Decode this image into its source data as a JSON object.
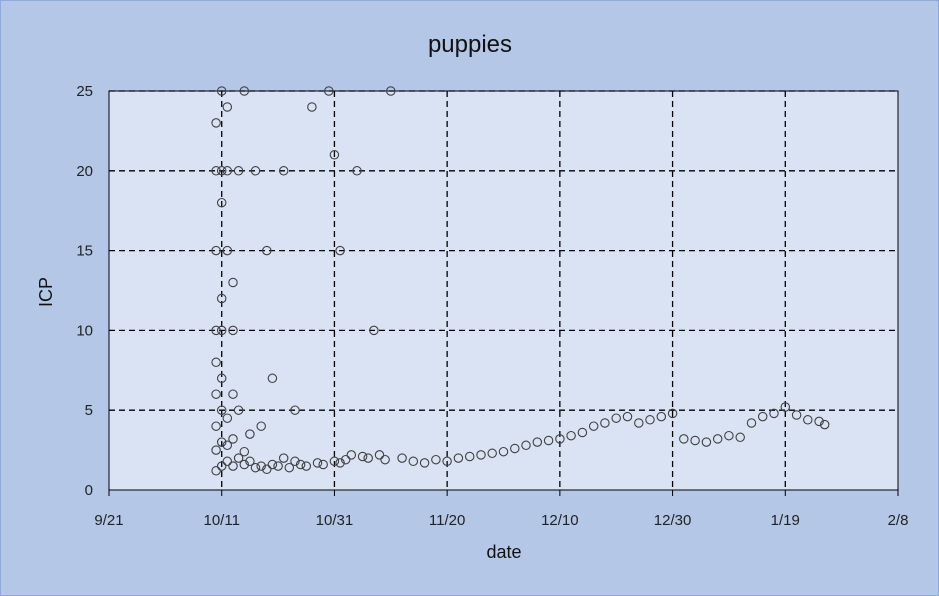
{
  "chart_data": {
    "type": "scatter",
    "title": "puppies",
    "xlabel": "date",
    "ylabel": "ICP",
    "x_axis_kind": "date",
    "xlim": [
      "2018-09-21",
      "2019-02-08"
    ],
    "ylim": [
      0,
      25
    ],
    "x_ticks": [
      {
        "date": "2018-09-21",
        "label": "9/21"
      },
      {
        "date": "2018-10-11",
        "label": "10/11"
      },
      {
        "date": "2018-10-31",
        "label": "10/31"
      },
      {
        "date": "2018-11-20",
        "label": "11/20"
      },
      {
        "date": "2018-12-10",
        "label": "12/10"
      },
      {
        "date": "2018-12-30",
        "label": "12/30"
      },
      {
        "date": "2019-01-19",
        "label": "1/19"
      },
      {
        "date": "2019-02-08",
        "label": "2/8"
      }
    ],
    "y_ticks": [
      0,
      5,
      10,
      15,
      20,
      25
    ],
    "grid": "dashed major gridlines",
    "legend": "none",
    "colors": {
      "figure_background": "#b4c7e7",
      "plot_background": "#dae3f3",
      "marker_edge": "#404040",
      "gridline": "#000000"
    },
    "series": [
      {
        "marker": "hollow-circle",
        "x": [
          "2018-10-10",
          "2018-10-10",
          "2018-10-10",
          "2018-10-10",
          "2018-10-10",
          "2018-10-10",
          "2018-10-10",
          "2018-10-10",
          "2018-10-10",
          "2018-10-11",
          "2018-10-11",
          "2018-10-11",
          "2018-10-11",
          "2018-10-11",
          "2018-10-11",
          "2018-10-11",
          "2018-10-11",
          "2018-10-11",
          "2018-10-12",
          "2018-10-12",
          "2018-10-12",
          "2018-10-12",
          "2018-10-12",
          "2018-10-12",
          "2018-10-13",
          "2018-10-13",
          "2018-10-13",
          "2018-10-13",
          "2018-10-13",
          "2018-10-14",
          "2018-10-14",
          "2018-10-14",
          "2018-10-15",
          "2018-10-15",
          "2018-10-15",
          "2018-10-16",
          "2018-10-16",
          "2018-10-17",
          "2018-10-17",
          "2018-10-18",
          "2018-10-18",
          "2018-10-19",
          "2018-10-19",
          "2018-10-20",
          "2018-10-20",
          "2018-10-21",
          "2018-10-22",
          "2018-10-22",
          "2018-10-23",
          "2018-10-24",
          "2018-10-24",
          "2018-10-25",
          "2018-10-26",
          "2018-10-27",
          "2018-10-28",
          "2018-10-29",
          "2018-10-30",
          "2018-10-31",
          "2018-10-31",
          "2018-11-01",
          "2018-11-01",
          "2018-11-02",
          "2018-11-03",
          "2018-11-04",
          "2018-11-05",
          "2018-11-06",
          "2018-11-07",
          "2018-11-08",
          "2018-11-09",
          "2018-11-10",
          "2018-11-12",
          "2018-11-14",
          "2018-11-16",
          "2018-11-18",
          "2018-11-20",
          "2018-11-22",
          "2018-11-24",
          "2018-11-26",
          "2018-11-28",
          "2018-11-30",
          "2018-12-02",
          "2018-12-04",
          "2018-12-06",
          "2018-12-08",
          "2018-12-10",
          "2018-12-12",
          "2018-12-14",
          "2018-12-16",
          "2018-12-18",
          "2018-12-20",
          "2018-12-22",
          "2018-12-24",
          "2018-12-26",
          "2018-12-28",
          "2018-12-30",
          "2019-01-01",
          "2019-01-03",
          "2019-01-05",
          "2019-01-07",
          "2019-01-09",
          "2019-01-11",
          "2019-01-13",
          "2019-01-15",
          "2019-01-17",
          "2019-01-19",
          "2019-01-21",
          "2019-01-23",
          "2019-01-25",
          "2019-01-26"
        ],
        "y": [
          1.2,
          2.5,
          4,
          6,
          8,
          10,
          15,
          20,
          23,
          1.5,
          3,
          5,
          7,
          12,
          18,
          25,
          20,
          10,
          1.8,
          2.8,
          4.5,
          15,
          20,
          24,
          1.5,
          3.2,
          6,
          10,
          13,
          2,
          5,
          20,
          1.6,
          2.4,
          25,
          1.8,
          3.5,
          1.4,
          20,
          1.5,
          4,
          1.3,
          15,
          1.6,
          7,
          1.5,
          2,
          20,
          1.4,
          1.8,
          5,
          1.6,
          1.5,
          24,
          1.7,
          1.6,
          25,
          1.8,
          21,
          1.7,
          15,
          1.9,
          2.2,
          20,
          2.1,
          2,
          10,
          2.2,
          1.9,
          25,
          2,
          1.8,
          1.7,
          1.9,
          1.8,
          2,
          2.1,
          2.2,
          2.3,
          2.4,
          2.6,
          2.8,
          3,
          3.1,
          3.2,
          3.4,
          3.6,
          4,
          4.2,
          4.5,
          4.6,
          4.2,
          4.4,
          4.6,
          4.8,
          3.2,
          3.1,
          3,
          3.2,
          3.4,
          3.3,
          4.2,
          4.6,
          4.8,
          5.2,
          4.7,
          4.4,
          4.3,
          4.1
        ]
      }
    ]
  }
}
